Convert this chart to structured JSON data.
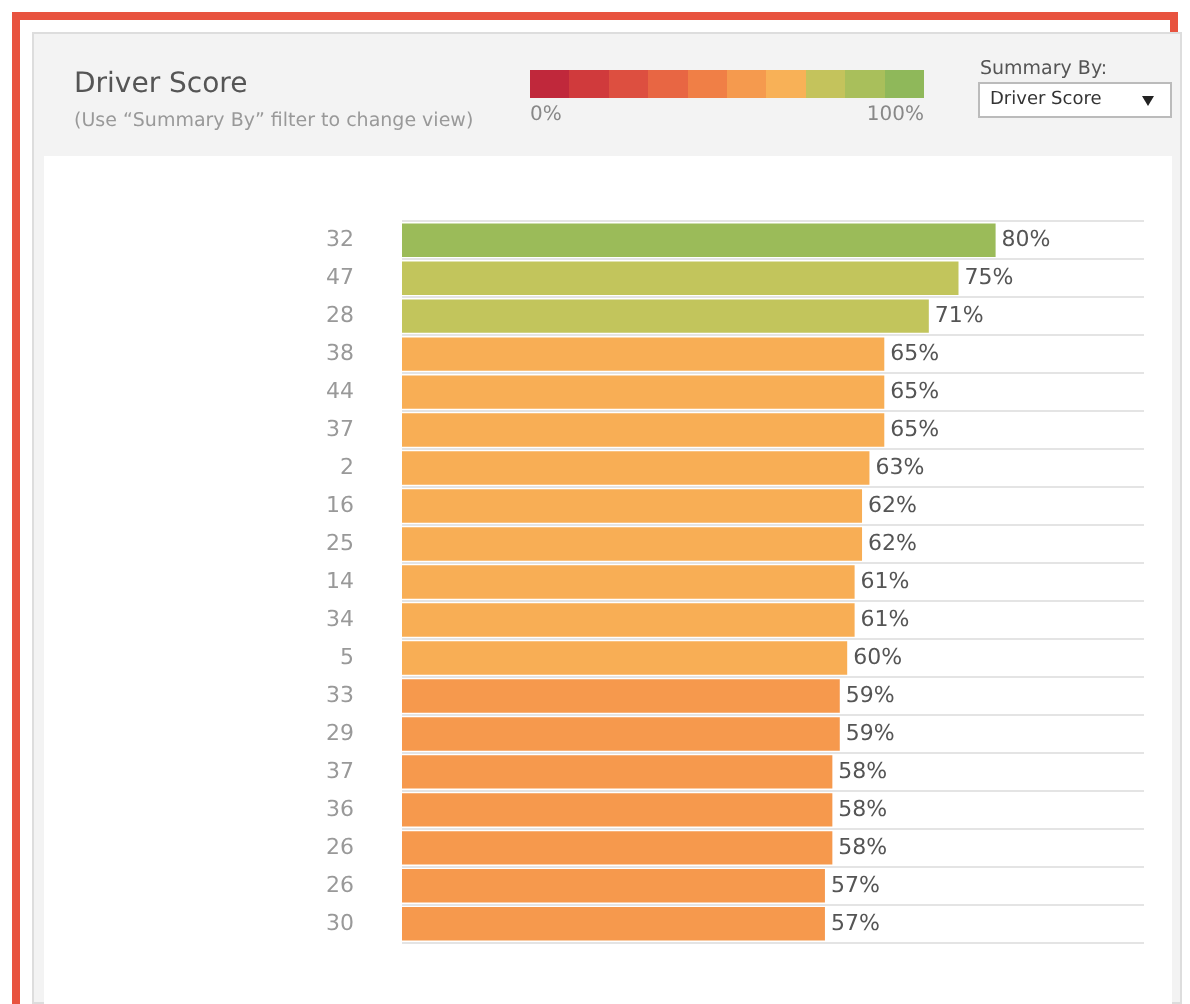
{
  "chart_data": {
    "type": "bar",
    "orientation": "horizontal",
    "title": "Driver Score",
    "subtitle": "(Use “Summary By” filter to change view)",
    "categories": [
      "32",
      "47",
      "28",
      "38",
      "44",
      "37",
      "2",
      "16",
      "25",
      "14",
      "34",
      "5",
      "33",
      "29",
      "37",
      "36",
      "26",
      "26",
      "30"
    ],
    "values": [
      80,
      75,
      71,
      65,
      65,
      65,
      63,
      62,
      62,
      61,
      61,
      60,
      59,
      59,
      58,
      58,
      58,
      57,
      57
    ],
    "value_labels": [
      "80%",
      "75%",
      "71%",
      "65%",
      "65%",
      "65%",
      "63%",
      "62%",
      "62%",
      "61%",
      "61%",
      "60%",
      "59%",
      "59%",
      "58%",
      "58%",
      "58%",
      "57%",
      "57%"
    ],
    "colors": [
      "#9bbb59",
      "#c2c55c",
      "#c2c55c",
      "#f8ae55",
      "#f8ae55",
      "#f8ae55",
      "#f8ae55",
      "#f8ae55",
      "#f8ae55",
      "#f8ae55",
      "#f8ae55",
      "#f8ae55",
      "#f6994d",
      "#f6994d",
      "#f6994d",
      "#f6994d",
      "#f6994d",
      "#f6994d",
      "#f6994d"
    ],
    "xlim": [
      0,
      100
    ],
    "tick_labels": "y",
    "grid": "y",
    "legend": false,
    "clim": [
      0,
      100
    ],
    "cticks": [
      {
        "value": 0,
        "label": "0%"
      },
      {
        "value": 100,
        "label": "100%"
      }
    ],
    "annotations": [
      "Summary By:",
      "Driver Score"
    ]
  }
}
